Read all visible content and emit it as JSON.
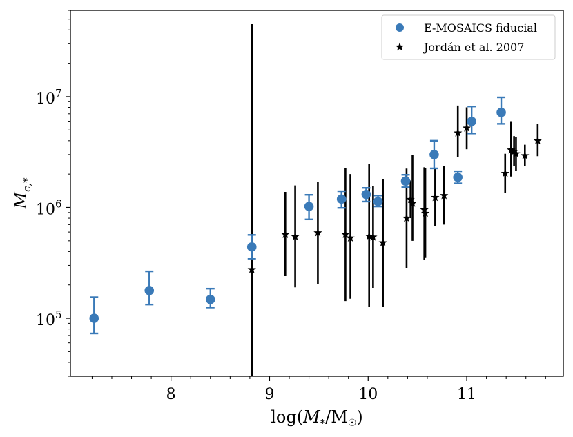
{
  "chart_data": {
    "type": "scatter",
    "title": "",
    "xlabel": "log(M*/M☉)",
    "ylabel": "Mc,*",
    "xscale": "linear",
    "yscale": "log",
    "xlim": [
      6.98,
      11.98
    ],
    "ylim": [
      30000,
      60000000
    ],
    "x_ticks": [
      8,
      9,
      10,
      11
    ],
    "x_tick_labels": [
      "8",
      "9",
      "10",
      "11"
    ],
    "y_ticks": [
      100000,
      1000000,
      10000000
    ],
    "y_tick_labels": [
      {
        "base": "10",
        "exp": "5"
      },
      {
        "base": "10",
        "exp": "6"
      },
      {
        "base": "10",
        "exp": "7"
      }
    ],
    "grid": false,
    "legend": {
      "position": "top-right",
      "entries": [
        "E-MOSAICS fiducial",
        "Jordán et al. 2007"
      ]
    },
    "series": [
      {
        "name": "E-MOSAICS fiducial",
        "marker": "circle",
        "color": "#3a7ab8",
        "points": [
          {
            "x": 7.22,
            "y": 100000,
            "lo": 73000,
            "hi": 155000
          },
          {
            "x": 7.78,
            "y": 178000,
            "lo": 133000,
            "hi": 265000
          },
          {
            "x": 8.4,
            "y": 148000,
            "lo": 125000,
            "hi": 185000
          },
          {
            "x": 8.82,
            "y": 440000,
            "lo": 345000,
            "hi": 565000
          },
          {
            "x": 9.4,
            "y": 1020000,
            "lo": 780000,
            "hi": 1300000
          },
          {
            "x": 9.73,
            "y": 1190000,
            "lo": 990000,
            "hi": 1400000
          },
          {
            "x": 9.98,
            "y": 1310000,
            "lo": 1130000,
            "hi": 1500000
          },
          {
            "x": 10.1,
            "y": 1130000,
            "lo": 1020000,
            "hi": 1280000
          },
          {
            "x": 10.38,
            "y": 1730000,
            "lo": 1520000,
            "hi": 1970000
          },
          {
            "x": 10.67,
            "y": 3000000,
            "lo": 2250000,
            "hi": 4000000
          },
          {
            "x": 10.91,
            "y": 1870000,
            "lo": 1650000,
            "hi": 2120000
          },
          {
            "x": 11.05,
            "y": 5980000,
            "lo": 4650000,
            "hi": 8150000
          },
          {
            "x": 11.35,
            "y": 7200000,
            "lo": 5680000,
            "hi": 9850000
          }
        ]
      },
      {
        "name": "Jordán et al. 2007",
        "marker": "star",
        "color": "#000000",
        "points": [
          {
            "x": 8.82,
            "y": 275000,
            "lo": 30000,
            "hi": 45000000
          },
          {
            "x": 9.16,
            "y": 570000,
            "lo": 240000,
            "hi": 1380000
          },
          {
            "x": 9.26,
            "y": 545000,
            "lo": 190000,
            "hi": 1580000
          },
          {
            "x": 9.49,
            "y": 590000,
            "lo": 205000,
            "hi": 1700000
          },
          {
            "x": 9.77,
            "y": 570000,
            "lo": 143000,
            "hi": 2250000
          },
          {
            "x": 9.82,
            "y": 530000,
            "lo": 150000,
            "hi": 2000000
          },
          {
            "x": 10.01,
            "y": 550000,
            "lo": 127000,
            "hi": 2450000
          },
          {
            "x": 10.05,
            "y": 540000,
            "lo": 188000,
            "hi": 1550000
          },
          {
            "x": 10.15,
            "y": 480000,
            "lo": 127000,
            "hi": 1800000
          },
          {
            "x": 10.39,
            "y": 800000,
            "lo": 285000,
            "hi": 2240000
          },
          {
            "x": 10.43,
            "y": 1180000,
            "lo": 800000,
            "hi": 1750000
          },
          {
            "x": 10.45,
            "y": 1090000,
            "lo": 500000,
            "hi": 2950000
          },
          {
            "x": 10.57,
            "y": 950000,
            "lo": 335000,
            "hi": 2300000
          },
          {
            "x": 10.58,
            "y": 885000,
            "lo": 355000,
            "hi": 2250000
          },
          {
            "x": 10.68,
            "y": 1230000,
            "lo": 675000,
            "hi": 2240000
          },
          {
            "x": 10.77,
            "y": 1280000,
            "lo": 700000,
            "hi": 2350000
          },
          {
            "x": 10.91,
            "y": 4700000,
            "lo": 2830000,
            "hi": 8300000
          },
          {
            "x": 11.0,
            "y": 5200000,
            "lo": 3350000,
            "hi": 8000000
          },
          {
            "x": 11.39,
            "y": 2030000,
            "lo": 1350000,
            "hi": 3050000
          },
          {
            "x": 11.45,
            "y": 3300000,
            "lo": 1900000,
            "hi": 6000000
          },
          {
            "x": 11.48,
            "y": 3200000,
            "lo": 2350000,
            "hi": 4400000
          },
          {
            "x": 11.5,
            "y": 3050000,
            "lo": 2150000,
            "hi": 4300000
          },
          {
            "x": 11.59,
            "y": 2930000,
            "lo": 2350000,
            "hi": 3680000
          },
          {
            "x": 11.72,
            "y": 4000000,
            "lo": 2900000,
            "hi": 5700000
          }
        ]
      }
    ]
  }
}
